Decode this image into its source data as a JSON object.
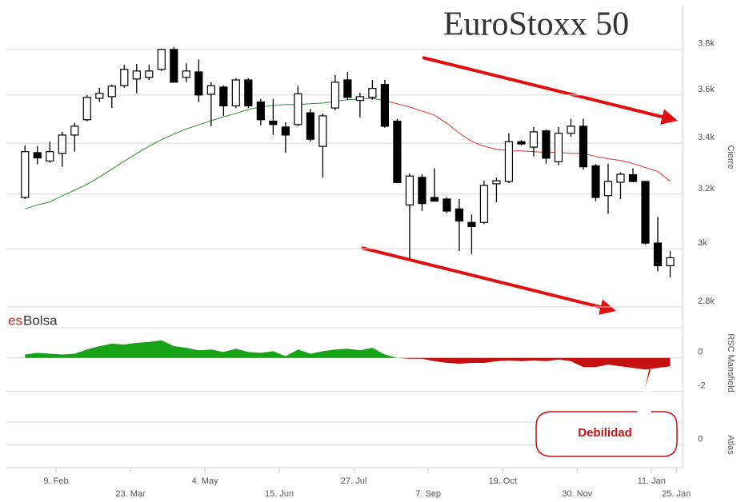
{
  "chart_data": [
    {
      "type": "candlestick",
      "title": "EuroStoxx 50",
      "y_label": "Cierre",
      "ylog": true,
      "grid": true,
      "up_color": "#ffffff",
      "down_color": "#000000",
      "wick_color": "#000000",
      "x": [
        1,
        2,
        3,
        4,
        5,
        6,
        7,
        8,
        9,
        10,
        11,
        12,
        13,
        14,
        15,
        16,
        17,
        18,
        19,
        20,
        21,
        22,
        23,
        24,
        25,
        26,
        27,
        28,
        29,
        30,
        31,
        32,
        33,
        34,
        35,
        36,
        37,
        38,
        39,
        40,
        41,
        42,
        43,
        44,
        45,
        46,
        47,
        48,
        49,
        50,
        51,
        52,
        53
      ],
      "xlim": [
        -0.5,
        54
      ],
      "xticks": [
        {
          "value": 3.5,
          "label": "9. Feb"
        },
        {
          "value": 9.5,
          "label": "23. Mar"
        },
        {
          "value": 15.5,
          "label": "4. May"
        },
        {
          "value": 21.5,
          "label": "15. Jun"
        },
        {
          "value": 27.5,
          "label": "27. Jul"
        },
        {
          "value": 33.5,
          "label": "7. Sep"
        },
        {
          "value": 39.5,
          "label": "19. Oct"
        },
        {
          "value": 45.5,
          "label": "30. Nov"
        },
        {
          "value": 51.5,
          "label": "11. Jan"
        },
        {
          "value": 53.5,
          "label": "25. Jan"
        }
      ],
      "ylim": [
        2797,
        3999
      ],
      "yticks": [
        {
          "value": 2800,
          "label": "2.8k"
        },
        {
          "value": 3000,
          "label": "3k"
        },
        {
          "value": 3200,
          "label": "3.2k"
        },
        {
          "value": 3400,
          "label": "3.4k"
        },
        {
          "value": 3600,
          "label": "3.6k"
        },
        {
          "value": 3800,
          "label": "3.8k"
        }
      ],
      "ohlc": [
        [
          3188,
          3391,
          3182,
          3366
        ],
        [
          3362,
          3387,
          3316,
          3341
        ],
        [
          3329,
          3406,
          3322,
          3366
        ],
        [
          3359,
          3446,
          3306,
          3433
        ],
        [
          3433,
          3483,
          3366,
          3469
        ],
        [
          3496,
          3600,
          3489,
          3590
        ],
        [
          3586,
          3631,
          3570,
          3607
        ],
        [
          3593,
          3645,
          3545,
          3638
        ],
        [
          3640,
          3731,
          3631,
          3711
        ],
        [
          3669,
          3735,
          3607,
          3704
        ],
        [
          3676,
          3731,
          3665,
          3704
        ],
        [
          3711,
          3804,
          3704,
          3800
        ],
        [
          3800,
          3811,
          3655,
          3655
        ],
        [
          3676,
          3738,
          3655,
          3704
        ],
        [
          3700,
          3755,
          3570,
          3600
        ],
        [
          3603,
          3655,
          3469,
          3640
        ],
        [
          3634,
          3641,
          3512,
          3554
        ],
        [
          3554,
          3672,
          3545,
          3665
        ],
        [
          3665,
          3672,
          3545,
          3554
        ],
        [
          3570,
          3583,
          3473,
          3496
        ],
        [
          3490,
          3583,
          3433,
          3476
        ],
        [
          3466,
          3486,
          3362,
          3433
        ],
        [
          3476,
          3640,
          3469,
          3605
        ],
        [
          3525,
          3541,
          3406,
          3416
        ],
        [
          3387,
          3522,
          3264,
          3512
        ],
        [
          3545,
          3686,
          3535,
          3655
        ],
        [
          3665,
          3700,
          3580,
          3590
        ],
        [
          3577,
          3610,
          3505,
          3593
        ],
        [
          3590,
          3665,
          3580,
          3628
        ],
        [
          3645,
          3665,
          3463,
          3469
        ],
        [
          3490,
          3500,
          3245,
          3245
        ],
        [
          3160,
          3280,
          2965,
          3270
        ],
        [
          3265,
          3277,
          3137,
          3165
        ],
        [
          3188,
          3300,
          3174,
          3174
        ],
        [
          3182,
          3188,
          3130,
          3137
        ],
        [
          3145,
          3182,
          2992,
          3100
        ],
        [
          3095,
          3124,
          2980,
          3080
        ],
        [
          3095,
          3252,
          3089,
          3234
        ],
        [
          3240,
          3264,
          3170,
          3252
        ],
        [
          3249,
          3440,
          3243,
          3406
        ],
        [
          3406,
          3413,
          3390,
          3397
        ],
        [
          3384,
          3466,
          3347,
          3446
        ],
        [
          3450,
          3456,
          3318,
          3340
        ],
        [
          3326,
          3466,
          3312,
          3440
        ],
        [
          3440,
          3500,
          3425,
          3469
        ],
        [
          3469,
          3500,
          3295,
          3306
        ],
        [
          3310,
          3318,
          3174,
          3188
        ],
        [
          3195,
          3318,
          3127,
          3249
        ],
        [
          3246,
          3285,
          3182,
          3277
        ],
        [
          3275,
          3300,
          3246,
          3249
        ],
        [
          3249,
          3249,
          3014,
          3020
        ],
        [
          3020,
          3115,
          2920,
          2940
        ],
        [
          2940,
          2992,
          2900,
          2968
        ]
      ],
      "lines": [
        {
          "color": "#2e8b2e",
          "values": [
            3145,
            3160,
            3171,
            3194,
            3216,
            3238,
            3266,
            3297,
            3328,
            3359,
            3388,
            3414,
            3437,
            3458,
            3475,
            3492,
            3508,
            3522,
            3539,
            3549,
            3556,
            3559,
            3559,
            3563,
            3566,
            3573,
            3580,
            3583,
            3586,
            3576,
            null,
            null,
            null,
            null,
            null,
            null,
            null,
            null,
            null,
            null,
            null,
            null,
            null,
            null,
            null,
            null,
            null,
            null,
            null,
            null,
            null,
            null,
            null
          ]
        },
        {
          "color": "#e03030",
          "values": [
            null,
            null,
            null,
            null,
            null,
            null,
            null,
            null,
            null,
            null,
            null,
            null,
            null,
            null,
            null,
            null,
            null,
            null,
            null,
            null,
            null,
            null,
            null,
            null,
            null,
            null,
            null,
            null,
            null,
            3576,
            3563,
            3549,
            3532,
            3515,
            3481,
            3441,
            3407,
            3388,
            3375,
            3369,
            3369,
            3366,
            3363,
            3363,
            3359,
            3359,
            3347,
            3338,
            3331,
            3319,
            3303,
            3288,
            3250
          ]
        }
      ]
    },
    {
      "type": "area",
      "y_label": "RSC Mansfield",
      "pos_color": "#17a317",
      "neg_color": "#c41010",
      "watermark": {
        "prefix": "es",
        "text": "Bolsa"
      },
      "annotation": "Debilidad",
      "ylim": [
        -2.4,
        1.8
      ],
      "yticks": [
        -2,
        0
      ],
      "grid": true,
      "values": [
        0.2,
        0.3,
        0.25,
        0.2,
        0.25,
        0.5,
        0.7,
        0.85,
        0.8,
        0.9,
        0.95,
        1.05,
        0.7,
        0.6,
        0.45,
        0.5,
        0.35,
        0.55,
        0.35,
        0.3,
        0.4,
        0.1,
        0.5,
        0.25,
        0.4,
        0.5,
        0.55,
        0.45,
        0.6,
        0.2,
        0,
        -0.05,
        -0.05,
        -0.2,
        -0.3,
        -0.35,
        -0.3,
        -0.3,
        -0.2,
        -0.15,
        -0.2,
        -0.15,
        -0.2,
        -0.1,
        -0.2,
        -0.55,
        -0.55,
        -0.4,
        -0.5,
        -0.6,
        -0.7,
        -0.6,
        -0.5
      ]
    },
    {
      "type": "panel",
      "y_label": "Atlas",
      "ylim": [
        -1,
        1
      ],
      "yticks": [
        0
      ],
      "grid": true
    }
  ]
}
